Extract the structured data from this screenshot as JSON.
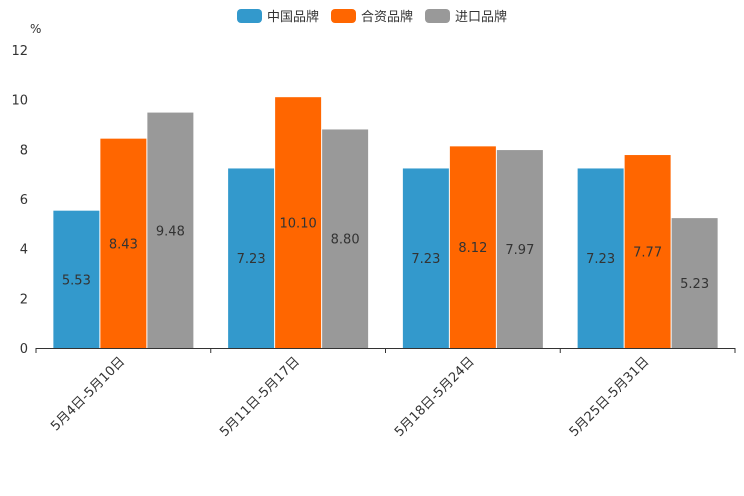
{
  "chart_data": {
    "type": "bar",
    "title": "",
    "xlabel": "",
    "ylabel": "%",
    "ylim": [
      0,
      12
    ],
    "yticks": [
      0,
      2,
      4,
      6,
      8,
      10,
      12
    ],
    "categories": [
      "5月4日-5月10日",
      "5月11日-5月17日",
      "5月18日-5月24日",
      "5月25日-5月31日"
    ],
    "series": [
      {
        "name": "中国品牌",
        "color": "#3399cc",
        "values": [
          5.53,
          7.23,
          7.23,
          7.23
        ],
        "labels": [
          "5.53",
          "7.23",
          "7.23",
          "7.23"
        ]
      },
      {
        "name": "合资品牌",
        "color": "#ff6600",
        "values": [
          8.43,
          10.1,
          8.12,
          7.77
        ],
        "labels": [
          "8.43",
          "10.10",
          "8.12",
          "7.77"
        ]
      },
      {
        "name": "进口品牌",
        "color": "#999999",
        "values": [
          9.48,
          8.8,
          7.97,
          5.23
        ],
        "labels": [
          "9.48",
          "8.80",
          "7.97",
          "5.23"
        ]
      }
    ],
    "legend_position": "top-center",
    "grid": false
  }
}
